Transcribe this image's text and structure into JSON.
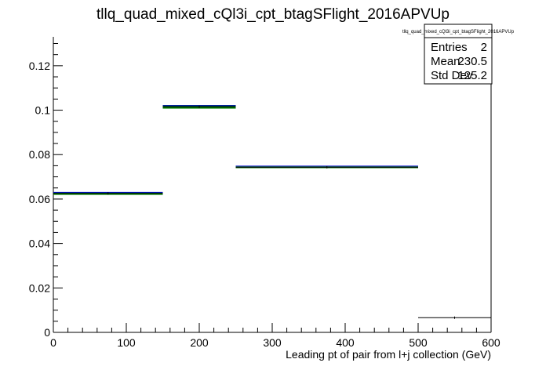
{
  "chart_data": {
    "type": "histogram",
    "title": "tllq_quad_mixed_cQl3i_cpt_btagSFlight_2016APVUp",
    "xlabel": "Leading pt of pair from l+j collection (GeV)",
    "ylabel": "",
    "xlim": [
      0,
      600
    ],
    "ylim": [
      0,
      0.133
    ],
    "x_ticks": [
      0,
      100,
      200,
      300,
      400,
      500,
      600
    ],
    "y_ticks": [
      0,
      0.02,
      0.04,
      0.06,
      0.08,
      0.1,
      0.12
    ],
    "x_tick_labels": [
      "0",
      "100",
      "200",
      "300",
      "400",
      "500",
      "600"
    ],
    "y_tick_labels": [
      "0",
      "0.02",
      "0.04",
      "0.06",
      "0.08",
      "0.1",
      "0.12"
    ],
    "bins": [
      {
        "low": 0,
        "high": 150,
        "value": 0.0625,
        "err": 0.0006
      },
      {
        "low": 150,
        "high": 250,
        "value": 0.1015,
        "err": 0.0008
      },
      {
        "low": 250,
        "high": 500,
        "value": 0.0743,
        "err": 0.0004
      },
      {
        "low": 500,
        "high": 600,
        "value": 0.0066,
        "err": 0.0
      }
    ],
    "colors": {
      "line": "#000000",
      "error": "#008000",
      "fill_edge": "#0000cc"
    },
    "stats": {
      "name": "tllq_quad_mixed_cQl3i_cpt_btagSFlight_2016APVUp",
      "rows": [
        {
          "label": "Entries",
          "value": "2"
        },
        {
          "label": "Mean",
          "value": "230.5"
        },
        {
          "label": "Std Dev",
          "value": "125.2"
        }
      ]
    },
    "grid": false,
    "legend": "none",
    "stats_placement": "top-right"
  }
}
